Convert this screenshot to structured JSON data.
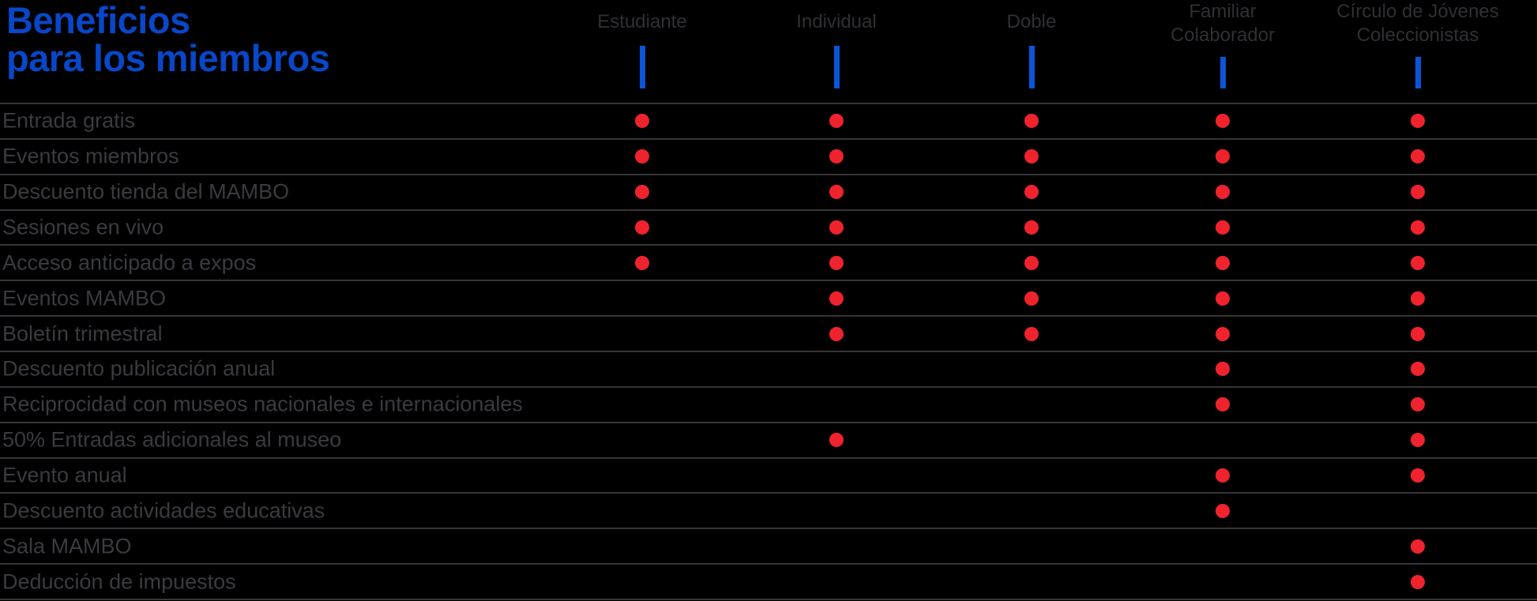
{
  "title": {
    "line1": "Beneficios",
    "line2": "para los miembros"
  },
  "header": {
    "columns": [
      {
        "id": "estudiante",
        "lines": [
          "Estudiante"
        ]
      },
      {
        "id": "individual",
        "lines": [
          "Individual"
        ]
      },
      {
        "id": "doble",
        "lines": [
          "Doble"
        ]
      },
      {
        "id": "familiar-colaborador",
        "lines": [
          "Familiar",
          "Colaborador"
        ]
      },
      {
        "id": "circulo-de-jovenes-coleccionistas",
        "lines": [
          "Círculo de Jóvenes",
          "Coleccionistas"
        ]
      }
    ]
  },
  "chart_data": {
    "type": "table",
    "title": "Beneficios para los miembros",
    "columns": [
      "Estudiante",
      "Individual",
      "Doble",
      "Familiar Colaborador",
      "Círculo de Jóvenes Coleccionistas"
    ],
    "rows": [
      {
        "benefit": "Entrada gratis",
        "values": [
          1,
          1,
          1,
          1,
          1
        ]
      },
      {
        "benefit": "Eventos miembros",
        "values": [
          1,
          1,
          1,
          1,
          1
        ]
      },
      {
        "benefit": "Descuento tienda del MAMBO",
        "values": [
          1,
          1,
          1,
          1,
          1
        ]
      },
      {
        "benefit": "Sesiones en vivo",
        "values": [
          1,
          1,
          1,
          1,
          1
        ]
      },
      {
        "benefit": "Acceso anticipado a expos",
        "values": [
          1,
          1,
          1,
          1,
          1
        ]
      },
      {
        "benefit": "Eventos MAMBO",
        "values": [
          0,
          1,
          1,
          1,
          1
        ]
      },
      {
        "benefit": "Boletín trimestral",
        "values": [
          0,
          1,
          1,
          1,
          1
        ]
      },
      {
        "benefit": "Descuento publicación anual",
        "values": [
          0,
          0,
          0,
          1,
          1
        ]
      },
      {
        "benefit": "Reciprocidad con museos nacionales e internacionales",
        "values": [
          0,
          0,
          0,
          1,
          1
        ]
      },
      {
        "benefit": "50% Entradas adicionales al museo",
        "values": [
          0,
          1,
          0,
          0,
          1
        ]
      },
      {
        "benefit": "Evento anual",
        "values": [
          0,
          0,
          0,
          1,
          1
        ]
      },
      {
        "benefit": "Descuento actividades educativas",
        "values": [
          0,
          0,
          0,
          1,
          0
        ]
      },
      {
        "benefit": "Sala MAMBO",
        "values": [
          0,
          0,
          0,
          0,
          1
        ]
      },
      {
        "benefit": "Deducción de impuestos",
        "values": [
          0,
          0,
          0,
          0,
          1
        ]
      }
    ],
    "legend": "red dot = benefit included in membership tier",
    "grid": "horizontal row dividers, full width"
  },
  "colors": {
    "background": "#000000",
    "title": "#0847c9",
    "tick": "#0b55d8",
    "dot": "#ef232d",
    "header_text": "#2f3034",
    "row_text": "#3a3b40",
    "divider": "#35363a"
  }
}
